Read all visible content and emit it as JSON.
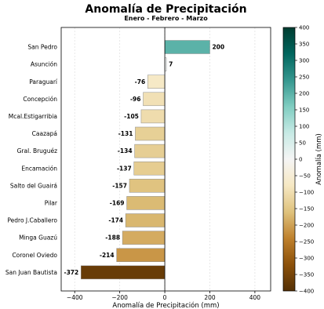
{
  "chart_data": {
    "type": "bar",
    "orientation": "horizontal",
    "title": "Anomalía de Precipitación",
    "subtitle": "Enero - Febrero - Marzo",
    "xlabel": "Anomalía de Precipitación (mm)",
    "ylabel": "",
    "xlim": [
      -460,
      470
    ],
    "xticks": [
      -400,
      -200,
      0,
      200,
      400
    ],
    "grid": true,
    "categories": [
      "San Pedro",
      "Asunción",
      "Paraguarí",
      "Concepción",
      "Mcal.Estigarribia",
      "Caazapá",
      "Gral. Bruguéz",
      "Encamación",
      "Salto del Guairá",
      "Pilar",
      "Pedro J.Caballero",
      "Minga Guazú",
      "Coronel Oviedo",
      "San Juan Bautista"
    ],
    "values": [
      200,
      7,
      -76,
      -96,
      -105,
      -131,
      -134,
      -137,
      -157,
      -169,
      -174,
      -188,
      -214,
      -372
    ],
    "data_labels": [
      "200",
      "7",
      "-76",
      "-96",
      "-105",
      "-131",
      "-134",
      "-137",
      "-157",
      "-169",
      "-174",
      "-188",
      "-214",
      "-372"
    ],
    "colorbar": {
      "label": "Anomalía (mm)",
      "range": [
        -400,
        400
      ],
      "ticks": [
        400,
        350,
        300,
        250,
        200,
        150,
        100,
        50,
        0,
        -50,
        -100,
        -150,
        -200,
        -250,
        -300,
        -350,
        -400
      ],
      "tick_labels": [
        "400",
        "350",
        "300",
        "250",
        "200",
        "150",
        "100",
        "50",
        "0",
        "−50",
        "−100",
        "−150",
        "−200",
        "−250",
        "−300",
        "−350",
        "−400"
      ],
      "colors": [
        "#543005",
        "#8c510a",
        "#bf812d",
        "#dfc27d",
        "#f6e8c3",
        "#f5f5f5",
        "#c7eae5",
        "#80cdc1",
        "#35978f",
        "#01665e",
        "#003c30"
      ]
    }
  }
}
